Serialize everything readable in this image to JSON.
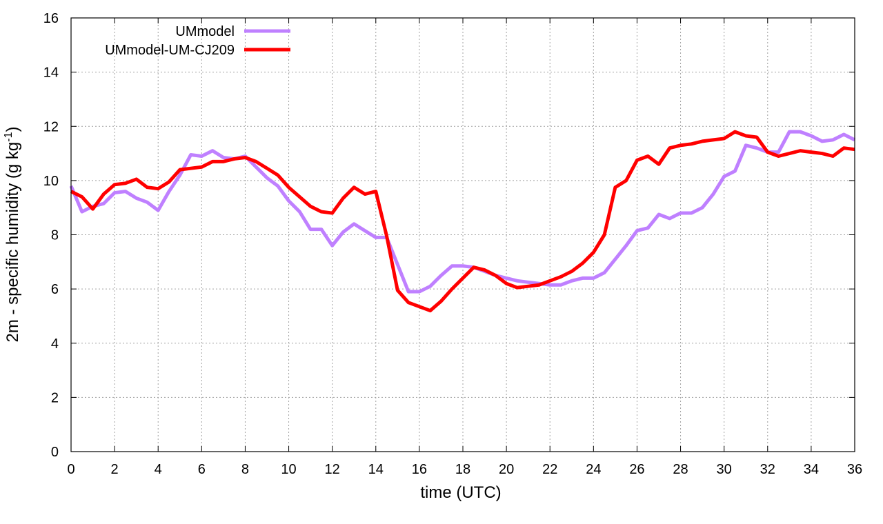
{
  "chart_data": {
    "type": "line",
    "title": "",
    "xlabel": "time (UTC)",
    "ylabel": "2m - specific humidity (g kg",
    "ylabel_sup": "-1",
    "ylabel_tail": ")",
    "xlim": [
      0,
      36
    ],
    "ylim": [
      0,
      16
    ],
    "xticks": [
      0,
      2,
      4,
      6,
      8,
      10,
      12,
      14,
      16,
      18,
      20,
      22,
      24,
      26,
      28,
      30,
      32,
      34,
      36
    ],
    "yticks": [
      0,
      2,
      4,
      6,
      8,
      10,
      12,
      14,
      16
    ],
    "grid": true,
    "legend_position": "top-left",
    "series": [
      {
        "name": "UMmodel",
        "color": "#bf80ff",
        "points": [
          [
            0,
            9.8
          ],
          [
            0.5,
            8.85
          ],
          [
            1,
            9.05
          ],
          [
            1.5,
            9.15
          ],
          [
            2,
            9.55
          ],
          [
            2.5,
            9.6
          ],
          [
            3,
            9.35
          ],
          [
            3.5,
            9.2
          ],
          [
            4,
            8.9
          ],
          [
            4.5,
            9.6
          ],
          [
            5,
            10.2
          ],
          [
            5.5,
            10.95
          ],
          [
            6,
            10.9
          ],
          [
            6.5,
            11.1
          ],
          [
            7,
            10.85
          ],
          [
            7.5,
            10.8
          ],
          [
            8,
            10.9
          ],
          [
            8.5,
            10.5
          ],
          [
            9,
            10.1
          ],
          [
            9.5,
            9.8
          ],
          [
            10,
            9.25
          ],
          [
            10.5,
            8.85
          ],
          [
            11,
            8.2
          ],
          [
            11.5,
            8.2
          ],
          [
            12,
            7.6
          ],
          [
            12.5,
            8.1
          ],
          [
            13,
            8.4
          ],
          [
            13.5,
            8.15
          ],
          [
            14,
            7.9
          ],
          [
            14.5,
            7.9
          ],
          [
            15,
            6.9
          ],
          [
            15.5,
            5.9
          ],
          [
            16,
            5.9
          ],
          [
            16.5,
            6.1
          ],
          [
            17,
            6.5
          ],
          [
            17.5,
            6.85
          ],
          [
            18,
            6.85
          ],
          [
            18.5,
            6.8
          ],
          [
            19,
            6.65
          ],
          [
            19.5,
            6.5
          ],
          [
            20,
            6.4
          ],
          [
            20.5,
            6.3
          ],
          [
            21,
            6.25
          ],
          [
            21.5,
            6.2
          ],
          [
            22,
            6.15
          ],
          [
            22.5,
            6.15
          ],
          [
            23,
            6.3
          ],
          [
            23.5,
            6.4
          ],
          [
            24,
            6.4
          ],
          [
            24.5,
            6.6
          ],
          [
            25,
            7.1
          ],
          [
            25.5,
            7.6
          ],
          [
            26,
            8.15
          ],
          [
            26.5,
            8.25
          ],
          [
            27,
            8.75
          ],
          [
            27.5,
            8.6
          ],
          [
            28,
            8.8
          ],
          [
            28.5,
            8.8
          ],
          [
            29,
            9.0
          ],
          [
            29.5,
            9.5
          ],
          [
            30,
            10.15
          ],
          [
            30.5,
            10.35
          ],
          [
            31,
            11.3
          ],
          [
            31.5,
            11.2
          ],
          [
            32,
            11.05
          ],
          [
            32.5,
            11.05
          ],
          [
            33,
            11.8
          ],
          [
            33.5,
            11.8
          ],
          [
            34,
            11.65
          ],
          [
            34.5,
            11.45
          ],
          [
            35,
            11.5
          ],
          [
            35.5,
            11.7
          ],
          [
            36,
            11.5
          ]
        ]
      },
      {
        "name": "UMmodel-UM-CJ209",
        "color": "#ff0000",
        "points": [
          [
            0,
            9.6
          ],
          [
            0.5,
            9.4
          ],
          [
            1,
            8.95
          ],
          [
            1.5,
            9.5
          ],
          [
            2,
            9.85
          ],
          [
            2.5,
            9.9
          ],
          [
            3,
            10.05
          ],
          [
            3.5,
            9.75
          ],
          [
            4,
            9.7
          ],
          [
            4.5,
            9.95
          ],
          [
            5,
            10.4
          ],
          [
            5.5,
            10.45
          ],
          [
            6,
            10.5
          ],
          [
            6.5,
            10.7
          ],
          [
            7,
            10.7
          ],
          [
            7.5,
            10.8
          ],
          [
            8,
            10.85
          ],
          [
            8.5,
            10.7
          ],
          [
            9,
            10.45
          ],
          [
            9.5,
            10.2
          ],
          [
            10,
            9.75
          ],
          [
            10.5,
            9.4
          ],
          [
            11,
            9.05
          ],
          [
            11.5,
            8.85
          ],
          [
            12,
            8.8
          ],
          [
            12.5,
            9.35
          ],
          [
            13,
            9.75
          ],
          [
            13.5,
            9.5
          ],
          [
            14,
            9.6
          ],
          [
            14.5,
            7.95
          ],
          [
            15,
            5.95
          ],
          [
            15.5,
            5.5
          ],
          [
            16,
            5.35
          ],
          [
            16.5,
            5.2
          ],
          [
            17,
            5.55
          ],
          [
            17.5,
            6.0
          ],
          [
            18,
            6.4
          ],
          [
            18.5,
            6.8
          ],
          [
            19,
            6.7
          ],
          [
            19.5,
            6.5
          ],
          [
            20,
            6.2
          ],
          [
            20.5,
            6.05
          ],
          [
            21,
            6.1
          ],
          [
            21.5,
            6.15
          ],
          [
            22,
            6.3
          ],
          [
            22.5,
            6.45
          ],
          [
            23,
            6.65
          ],
          [
            23.5,
            6.95
          ],
          [
            24,
            7.35
          ],
          [
            24.5,
            8.0
          ],
          [
            25,
            9.75
          ],
          [
            25.5,
            10.0
          ],
          [
            26,
            10.75
          ],
          [
            26.5,
            10.9
          ],
          [
            27,
            10.6
          ],
          [
            27.5,
            11.2
          ],
          [
            28,
            11.3
          ],
          [
            28.5,
            11.35
          ],
          [
            29,
            11.45
          ],
          [
            29.5,
            11.5
          ],
          [
            30,
            11.55
          ],
          [
            30.5,
            11.8
          ],
          [
            31,
            11.65
          ],
          [
            31.5,
            11.6
          ],
          [
            32,
            11.05
          ],
          [
            32.5,
            10.9
          ],
          [
            33,
            11.0
          ],
          [
            33.5,
            11.1
          ],
          [
            34,
            11.05
          ],
          [
            34.5,
            11.0
          ],
          [
            35,
            10.9
          ],
          [
            35.5,
            11.2
          ],
          [
            36,
            11.15
          ]
        ]
      }
    ]
  }
}
